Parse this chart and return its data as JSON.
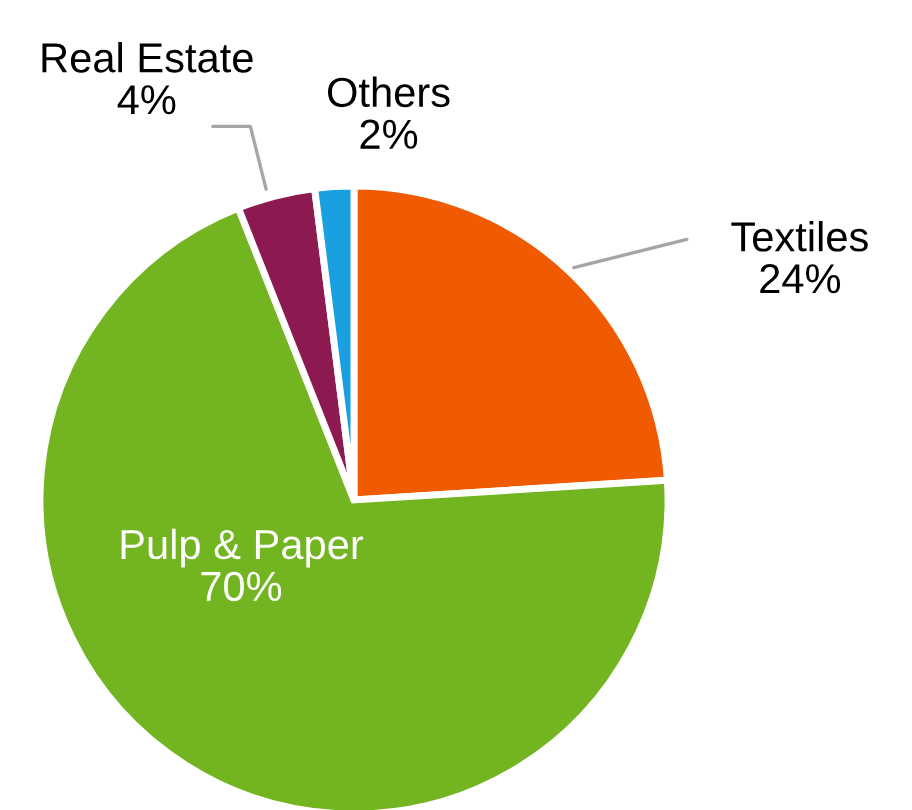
{
  "chart_data": {
    "type": "pie",
    "categories": [
      "Textiles",
      "Pulp & Paper",
      "Real Estate",
      "Others"
    ],
    "values": [
      24,
      70,
      4,
      2
    ],
    "colors": [
      "#f05a00",
      "#72b520",
      "#8c1a50",
      "#1aa0e0"
    ],
    "value_labels": [
      "24%",
      "70%",
      "4%",
      "2%"
    ],
    "legend": false
  }
}
